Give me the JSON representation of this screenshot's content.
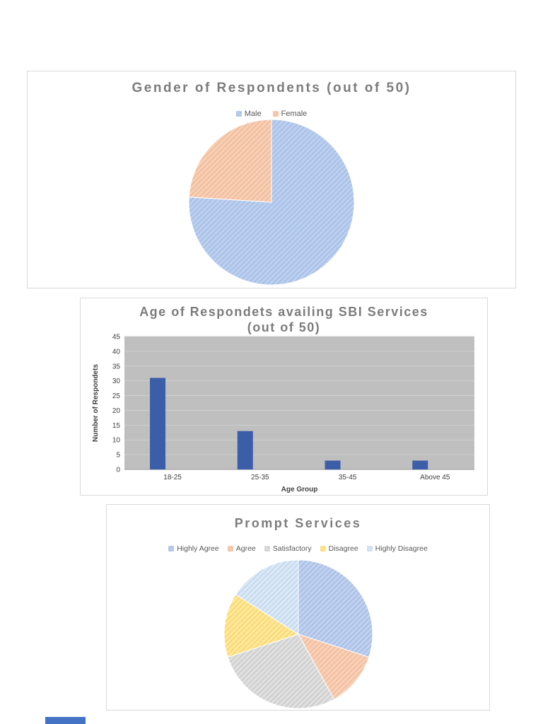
{
  "page": {
    "background": "#ffffff",
    "accent_blue": "#4472c4"
  },
  "chart_data": [
    {
      "type": "pie",
      "title": "Gender of Respondents (out of 50)",
      "legend_position": "top",
      "labels": [
        "Male",
        "Female"
      ],
      "values": [
        38,
        12
      ],
      "total": 50,
      "colors": [
        "#bccfee",
        "#f7cfb5"
      ],
      "stripe_colors": [
        "#9db9e4",
        "#efb490"
      ],
      "pattern": "diagonal-hatch",
      "start_angle": "top",
      "direction": "clockwise"
    },
    {
      "type": "bar",
      "title": "Age of Respondets availing SBI Services (out of 50)",
      "categories": [
        "18-25",
        "25-35",
        "35-45",
        "Above 45"
      ],
      "values": [
        31,
        13,
        3,
        3
      ],
      "xlabel": "Age Group",
      "ylabel": "Number of Respondets",
      "ylim": [
        0,
        45
      ],
      "ytick_step": 5,
      "yticks": [
        0,
        5,
        10,
        15,
        20,
        25,
        30,
        35,
        40,
        45
      ],
      "bar_color": "#3c5da8",
      "plot_bg": "#bfbfbf",
      "grid": true,
      "legend_position": "none"
    },
    {
      "type": "pie",
      "title": "Prompt Services",
      "legend_position": "top",
      "labels": [
        "Highly Agree",
        "Agree",
        "Satisfactory",
        "Disagree",
        "Highly Disagree"
      ],
      "values": [
        15,
        6,
        14,
        7,
        8
      ],
      "total": 50,
      "colors": [
        "#c0d0ee",
        "#f8d0b7",
        "#e0e0e0",
        "#ffe89a",
        "#dbe8f6"
      ],
      "stripe_colors": [
        "#9cb6e2",
        "#efb490",
        "#c3c3c3",
        "#f4d05e",
        "#b8d1ea"
      ],
      "pattern": "diagonal-hatch",
      "start_angle": "top",
      "direction": "clockwise"
    }
  ]
}
